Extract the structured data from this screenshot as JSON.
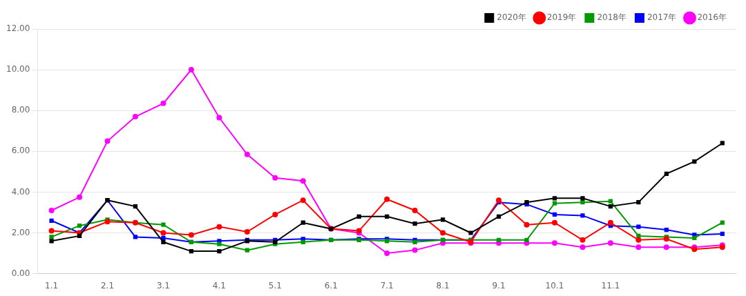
{
  "chart_data": {
    "type": "line",
    "categories": [
      "1.1",
      null,
      "2.1",
      null,
      "3.1",
      null,
      "4.1",
      null,
      "5.1",
      null,
      "6.1",
      null,
      "7.1",
      null,
      "8.1",
      null,
      "9.1",
      null,
      "10.1",
      null,
      "11.1",
      null,
      null,
      null,
      null
    ],
    "series": [
      {
        "name": "2020年",
        "color": "#000000",
        "marker": "square",
        "values": [
          1.6,
          1.85,
          3.6,
          3.3,
          1.55,
          1.1,
          1.1,
          1.6,
          1.55,
          2.5,
          2.2,
          2.8,
          2.8,
          2.45,
          2.65,
          2.0,
          2.8,
          3.5,
          3.7,
          3.7,
          3.3,
          3.5,
          4.9,
          5.5,
          6.4
        ]
      },
      {
        "name": "2019年",
        "color": "#ff0000",
        "marker": "circle",
        "values": [
          2.1,
          2.0,
          2.55,
          2.5,
          2.0,
          1.9,
          2.3,
          2.05,
          2.9,
          3.6,
          2.2,
          2.1,
          3.65,
          3.1,
          2.0,
          1.55,
          3.6,
          2.4,
          2.5,
          1.65,
          2.5,
          1.65,
          1.7,
          1.2,
          1.3
        ]
      },
      {
        "name": "2018年",
        "color": "#009900",
        "marker": "square",
        "values": [
          1.8,
          2.35,
          2.65,
          2.5,
          2.4,
          1.55,
          1.45,
          1.15,
          1.45,
          1.55,
          1.65,
          1.65,
          1.6,
          1.55,
          1.65,
          1.65,
          1.65,
          1.65,
          3.45,
          3.5,
          3.55,
          1.85,
          1.8,
          1.75,
          2.5
        ]
      },
      {
        "name": "2017年",
        "color": "#0000ff",
        "marker": "square",
        "values": [
          2.6,
          2.0,
          3.6,
          1.8,
          1.75,
          1.55,
          1.6,
          1.65,
          1.65,
          1.7,
          1.65,
          1.7,
          1.7,
          1.65,
          1.65,
          1.65,
          3.5,
          3.4,
          2.9,
          2.85,
          2.35,
          2.3,
          2.15,
          1.9,
          1.95
        ]
      },
      {
        "name": "2016年",
        "color": "#ff00ff",
        "marker": "circle",
        "values": [
          3.1,
          3.75,
          6.5,
          7.7,
          8.35,
          10.0,
          7.65,
          5.85,
          4.7,
          4.55,
          2.2,
          2.0,
          1.0,
          1.15,
          1.5,
          1.5,
          1.5,
          1.5,
          1.5,
          1.3,
          1.5,
          1.3,
          1.3,
          1.3,
          1.4
        ]
      }
    ],
    "ylim": [
      0,
      12.0
    ],
    "yticks": [
      {
        "value": 0.0,
        "label": "0.00"
      },
      {
        "value": 2.0,
        "label": "2.00"
      },
      {
        "value": 4.0,
        "label": "4.00"
      },
      {
        "value": 6.0,
        "label": "6.00"
      },
      {
        "value": 8.0,
        "label": "8.00"
      },
      {
        "value": 10.0,
        "label": "10.00"
      },
      {
        "value": 12.0,
        "label": "12.00"
      }
    ],
    "grid": true,
    "legend": "upper right"
  }
}
